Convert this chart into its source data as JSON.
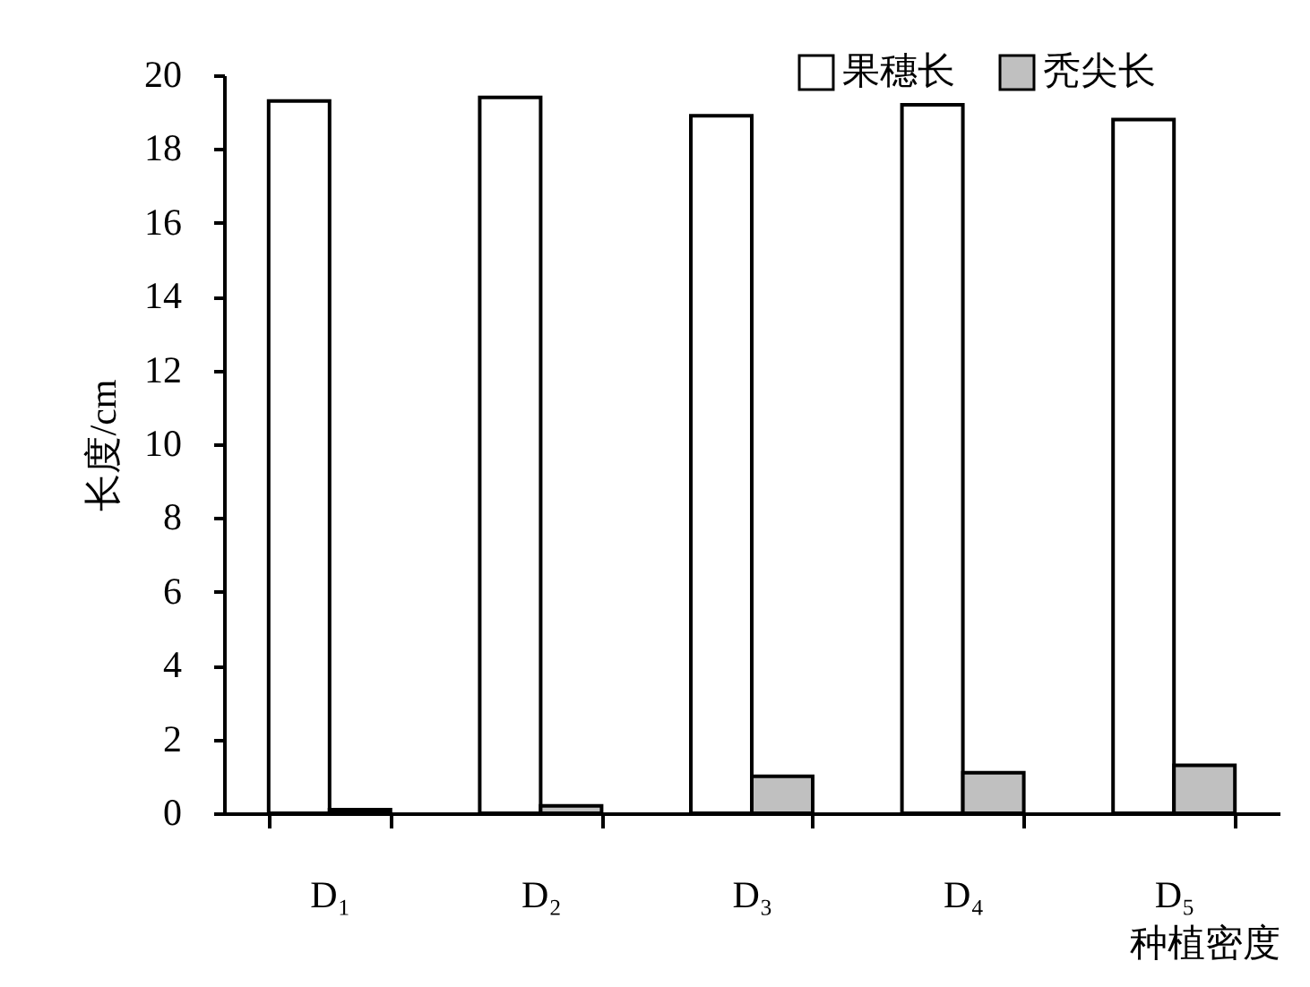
{
  "chart_data": {
    "type": "bar",
    "xlabel": "种植密度",
    "ylabel": "长度/cm",
    "categories": [
      "D₁",
      "D₂",
      "D₃",
      "D₄",
      "D₅"
    ],
    "series": [
      {
        "name": "果穗长",
        "color": "#ffffff",
        "values": [
          19.3,
          19.4,
          18.9,
          19.2,
          18.8
        ]
      },
      {
        "name": "秃尖长",
        "color": "#c0c0c0",
        "values": [
          0.1,
          0.2,
          1.0,
          1.1,
          1.3
        ]
      }
    ],
    "ylim": [
      0,
      20
    ],
    "yticks": [
      0,
      2,
      4,
      6,
      8,
      10,
      12,
      14,
      16,
      18,
      20
    ],
    "grid": false,
    "legend": "top right"
  }
}
